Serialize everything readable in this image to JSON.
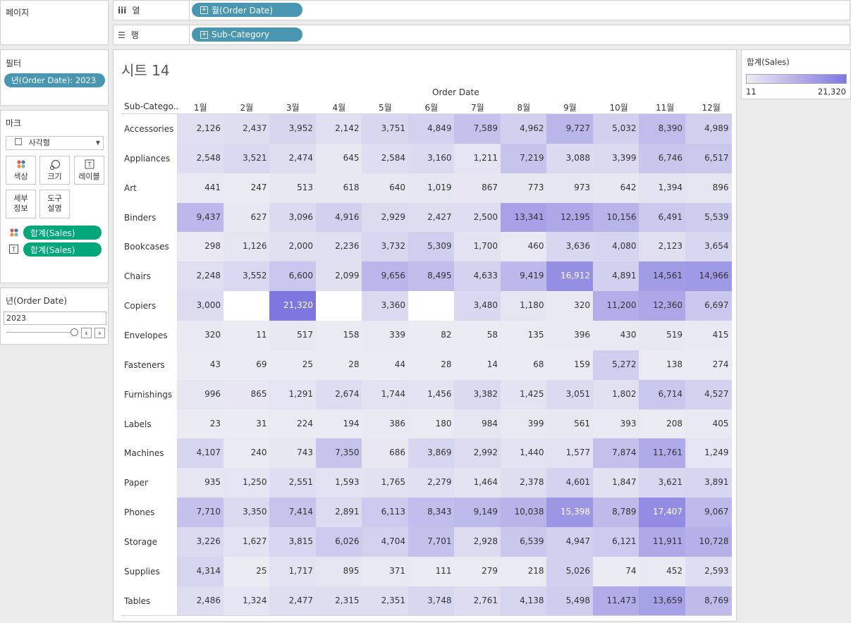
{
  "pages_panel": {
    "title": "페이지"
  },
  "columns_shelf": {
    "label": "열",
    "icon": "columns-icon",
    "pill": "월(Order Date)"
  },
  "rows_shelf": {
    "label": "행",
    "icon": "rows-icon",
    "pill": "Sub-Category"
  },
  "filters_panel": {
    "title": "필터",
    "pill": "년(Order Date): 2023"
  },
  "marks_panel": {
    "title": "마크",
    "mark_type": "사각형",
    "buttons": [
      {
        "label": "색상",
        "icon": "color-icon"
      },
      {
        "label": "크기",
        "icon": "size-icon"
      },
      {
        "label": "레이블",
        "icon": "label-icon"
      },
      {
        "label1": "세부",
        "label2": "정보",
        "icon": "detail-icon"
      },
      {
        "label1": "도구",
        "label2": "설명",
        "icon": "tooltip-icon"
      }
    ],
    "fields": [
      {
        "pill": "합계(Sales)",
        "icon": "color-dots-icon"
      },
      {
        "pill": "합계(Sales)",
        "icon": "text-icon"
      }
    ]
  },
  "year_filter": {
    "title": "년(Order Date)",
    "value": "2023"
  },
  "legend": {
    "title": "합계(Sales)",
    "min": "11",
    "max": "21,320"
  },
  "sheet": {
    "title": "시트 14",
    "column_group": "Order Date",
    "row_header": "Sub-Catego..",
    "months": [
      "1월",
      "2월",
      "3월",
      "4월",
      "5월",
      "6월",
      "7월",
      "8월",
      "9월",
      "10월",
      "11월",
      "12월"
    ]
  },
  "chart_data": {
    "type": "heatmap",
    "title": "시트 14",
    "xlabel": "Order Date",
    "ylabel": "Sub-Category",
    "colorbar": {
      "label": "합계(Sales)",
      "min": 11,
      "max": 21320
    },
    "x": [
      "1월",
      "2월",
      "3월",
      "4월",
      "5월",
      "6월",
      "7월",
      "8월",
      "9월",
      "10월",
      "11월",
      "12월"
    ],
    "rows": [
      {
        "name": "Accessories",
        "values": [
          2126,
          2437,
          3952,
          2142,
          3751,
          4849,
          7589,
          4962,
          9727,
          5032,
          8390,
          4989
        ]
      },
      {
        "name": "Appliances",
        "values": [
          2548,
          3521,
          2474,
          645,
          2584,
          3160,
          1211,
          7219,
          3088,
          3399,
          6746,
          6517
        ]
      },
      {
        "name": "Art",
        "values": [
          441,
          247,
          513,
          618,
          640,
          1019,
          867,
          773,
          973,
          642,
          1394,
          896
        ]
      },
      {
        "name": "Binders",
        "values": [
          9437,
          627,
          3096,
          4916,
          2929,
          2427,
          2500,
          13341,
          12195,
          10156,
          6491,
          5539
        ]
      },
      {
        "name": "Bookcases",
        "values": [
          298,
          1126,
          2000,
          2236,
          3732,
          5309,
          1700,
          460,
          3636,
          4080,
          2123,
          3654
        ]
      },
      {
        "name": "Chairs",
        "values": [
          2248,
          3552,
          6600,
          2099,
          9656,
          8495,
          4633,
          9419,
          16912,
          4891,
          14561,
          14966
        ]
      },
      {
        "name": "Copiers",
        "values": [
          3000,
          null,
          21320,
          null,
          3360,
          null,
          3480,
          1180,
          320,
          11200,
          12360,
          6697
        ]
      },
      {
        "name": "Envelopes",
        "values": [
          320,
          11,
          517,
          158,
          339,
          82,
          58,
          135,
          396,
          430,
          519,
          415
        ]
      },
      {
        "name": "Fasteners",
        "values": [
          43,
          69,
          25,
          28,
          44,
          28,
          14,
          68,
          159,
          5272,
          138,
          274
        ]
      },
      {
        "name": "Furnishings",
        "values": [
          996,
          865,
          1291,
          2674,
          1744,
          1456,
          3382,
          1425,
          3051,
          1802,
          6714,
          4527
        ]
      },
      {
        "name": "Labels",
        "values": [
          23,
          31,
          224,
          194,
          386,
          180,
          984,
          399,
          561,
          393,
          208,
          405
        ]
      },
      {
        "name": "Machines",
        "values": [
          4107,
          240,
          743,
          7350,
          686,
          3869,
          2992,
          1440,
          1577,
          7874,
          11761,
          1249
        ]
      },
      {
        "name": "Paper",
        "values": [
          935,
          1250,
          2551,
          1593,
          1765,
          2279,
          1464,
          2378,
          4601,
          1847,
          3621,
          3891
        ]
      },
      {
        "name": "Phones",
        "values": [
          7710,
          3350,
          7414,
          2891,
          6113,
          8343,
          9149,
          10038,
          15398,
          8789,
          17407,
          9067
        ]
      },
      {
        "name": "Storage",
        "values": [
          3226,
          1627,
          3815,
          6026,
          4704,
          7701,
          2928,
          6539,
          4947,
          6121,
          11911,
          10728
        ]
      },
      {
        "name": "Supplies",
        "values": [
          4314,
          25,
          1717,
          895,
          371,
          111,
          279,
          218,
          5026,
          74,
          452,
          2593
        ]
      },
      {
        "name": "Tables",
        "values": [
          2486,
          1324,
          2477,
          2315,
          2351,
          3748,
          2761,
          4138,
          5498,
          11473,
          13659,
          8769
        ]
      }
    ]
  }
}
